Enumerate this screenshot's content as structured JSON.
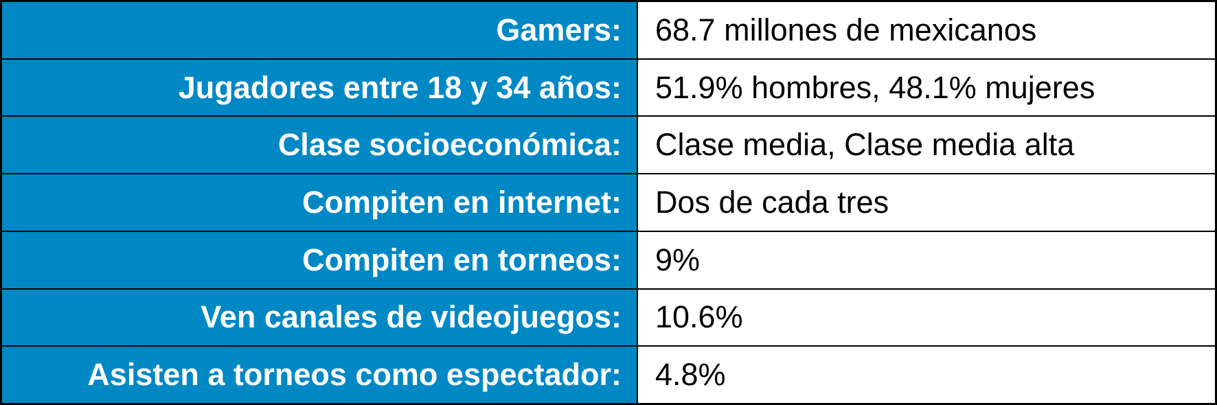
{
  "colors": {
    "label_background": "#0088c5",
    "label_text": "#ffffff",
    "value_background": "#ffffff",
    "value_text": "#000000",
    "border": "#000000"
  },
  "rows": [
    {
      "label": "Gamers:",
      "value": "68.7 millones de mexicanos"
    },
    {
      "label": "Jugadores entre 18 y 34 años:",
      "value": "51.9% hombres, 48.1% mujeres"
    },
    {
      "label": "Clase socioeconómica:",
      "value": "Clase media, Clase media alta"
    },
    {
      "label": "Compiten en internet:",
      "value": "Dos de cada tres"
    },
    {
      "label": "Compiten en torneos:",
      "value": "9%"
    },
    {
      "label": "Ven canales de videojuegos:",
      "value": "10.6%"
    },
    {
      "label": "Asisten a torneos como espectador:",
      "value": "4.8%"
    }
  ]
}
